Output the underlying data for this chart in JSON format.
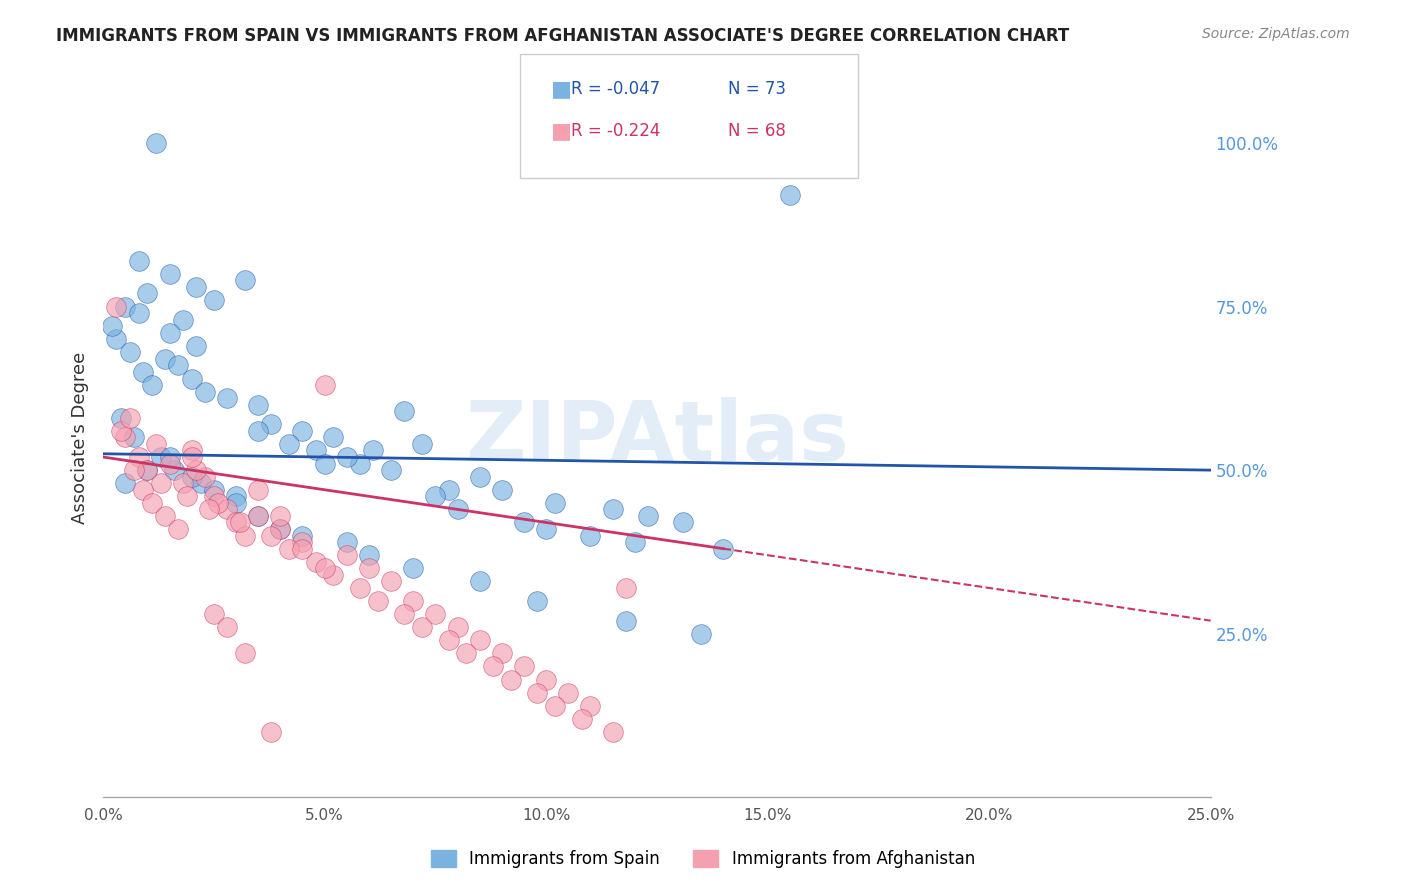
{
  "title": "IMMIGRANTS FROM SPAIN VS IMMIGRANTS FROM AFGHANISTAN ASSOCIATE'S DEGREE CORRELATION CHART",
  "source": "Source: ZipAtlas.com",
  "ylabel": "Associate's Degree",
  "x_tick_labels": [
    "0.0%",
    "5.0%",
    "10.0%",
    "15.0%",
    "20.0%",
    "25.0%"
  ],
  "x_tick_vals": [
    0.0,
    5.0,
    10.0,
    15.0,
    20.0,
    25.0
  ],
  "y_tick_labels_right": [
    "25.0%",
    "50.0%",
    "75.0%",
    "100.0%"
  ],
  "y_tick_vals": [
    25.0,
    50.0,
    75.0,
    100.0
  ],
  "xlim": [
    0.0,
    25.0
  ],
  "ylim": [
    0.0,
    110.0
  ],
  "legend_blue_R": "R = -0.047",
  "legend_blue_N": "N = 73",
  "legend_pink_R": "R = -0.224",
  "legend_pink_N": "N = 68",
  "blue_label": "Immigrants from Spain",
  "pink_label": "Immigrants from Afghanistan",
  "blue_color": "#7ab3e0",
  "pink_color": "#f4a0b0",
  "blue_trend_color": "#2255aa",
  "pink_trend_color": "#cc3366",
  "watermark": "ZIPAtlas",
  "background_color": "#ffffff",
  "grid_color": "#dddddd",
  "blue_scatter_x": [
    1.2,
    2.1,
    1.5,
    0.8,
    0.5,
    1.0,
    1.8,
    2.5,
    3.2,
    0.3,
    0.6,
    0.9,
    1.1,
    1.4,
    1.7,
    2.0,
    2.3,
    2.8,
    3.5,
    0.4,
    0.7,
    1.3,
    1.6,
    2.2,
    3.0,
    0.2,
    0.8,
    1.5,
    2.1,
    3.8,
    5.2,
    6.1,
    5.8,
    4.5,
    6.8,
    7.2,
    8.5,
    9.0,
    10.2,
    11.5,
    12.3,
    13.1,
    5.5,
    6.5,
    7.8,
    4.2,
    3.5,
    4.8,
    5.0,
    7.5,
    8.0,
    9.5,
    10.0,
    11.0,
    12.0,
    14.0,
    0.5,
    1.0,
    1.5,
    2.0,
    2.5,
    3.0,
    3.5,
    4.0,
    4.5,
    5.5,
    6.0,
    7.0,
    8.5,
    9.8,
    11.8,
    13.5,
    15.5
  ],
  "blue_scatter_y": [
    100.0,
    78.0,
    80.0,
    82.0,
    75.0,
    77.0,
    73.0,
    76.0,
    79.0,
    70.0,
    68.0,
    65.0,
    63.0,
    67.0,
    66.0,
    64.0,
    62.0,
    61.0,
    60.0,
    58.0,
    55.0,
    52.0,
    50.0,
    48.0,
    46.0,
    72.0,
    74.0,
    71.0,
    69.0,
    57.0,
    55.0,
    53.0,
    51.0,
    56.0,
    59.0,
    54.0,
    49.0,
    47.0,
    45.0,
    44.0,
    43.0,
    42.0,
    52.0,
    50.0,
    47.0,
    54.0,
    56.0,
    53.0,
    51.0,
    46.0,
    44.0,
    42.0,
    41.0,
    40.0,
    39.0,
    38.0,
    48.0,
    50.0,
    52.0,
    49.0,
    47.0,
    45.0,
    43.0,
    41.0,
    40.0,
    39.0,
    37.0,
    35.0,
    33.0,
    30.0,
    27.0,
    25.0,
    92.0
  ],
  "pink_scatter_x": [
    0.3,
    0.5,
    0.8,
    1.0,
    1.2,
    1.5,
    1.8,
    2.0,
    2.3,
    2.5,
    2.8,
    3.0,
    3.2,
    0.4,
    0.6,
    0.9,
    1.1,
    1.4,
    1.7,
    2.1,
    2.6,
    3.5,
    4.0,
    4.5,
    5.0,
    5.5,
    6.0,
    6.5,
    7.0,
    7.5,
    8.0,
    8.5,
    9.0,
    9.5,
    10.0,
    10.5,
    11.0,
    0.7,
    1.3,
    1.9,
    2.4,
    3.1,
    3.8,
    4.2,
    4.8,
    5.2,
    5.8,
    6.2,
    6.8,
    7.2,
    7.8,
    8.2,
    8.8,
    9.2,
    9.8,
    10.2,
    10.8,
    11.5,
    2.0,
    3.5,
    4.0,
    4.5,
    5.0,
    11.8,
    2.5,
    2.8,
    3.2,
    3.8
  ],
  "pink_scatter_y": [
    75.0,
    55.0,
    52.0,
    50.0,
    54.0,
    51.0,
    48.0,
    53.0,
    49.0,
    46.0,
    44.0,
    42.0,
    40.0,
    56.0,
    58.0,
    47.0,
    45.0,
    43.0,
    41.0,
    50.0,
    45.0,
    43.0,
    41.0,
    39.0,
    63.0,
    37.0,
    35.0,
    33.0,
    30.0,
    28.0,
    26.0,
    24.0,
    22.0,
    20.0,
    18.0,
    16.0,
    14.0,
    50.0,
    48.0,
    46.0,
    44.0,
    42.0,
    40.0,
    38.0,
    36.0,
    34.0,
    32.0,
    30.0,
    28.0,
    26.0,
    24.0,
    22.0,
    20.0,
    18.0,
    16.0,
    14.0,
    12.0,
    10.0,
    52.0,
    47.0,
    43.0,
    38.0,
    35.0,
    32.0,
    28.0,
    26.0,
    22.0,
    10.0
  ],
  "blue_trend_x0": 0.0,
  "blue_trend_y0": 52.5,
  "blue_trend_x1": 25.0,
  "blue_trend_y1": 50.0,
  "pink_trend_x0": 0.0,
  "pink_trend_y0": 52.0,
  "pink_trend_x1": 14.0,
  "pink_trend_y1": 38.0,
  "pink_dash_x0": 14.0,
  "pink_dash_y0": 38.0,
  "pink_dash_x1": 25.0,
  "pink_dash_y1": 27.0
}
